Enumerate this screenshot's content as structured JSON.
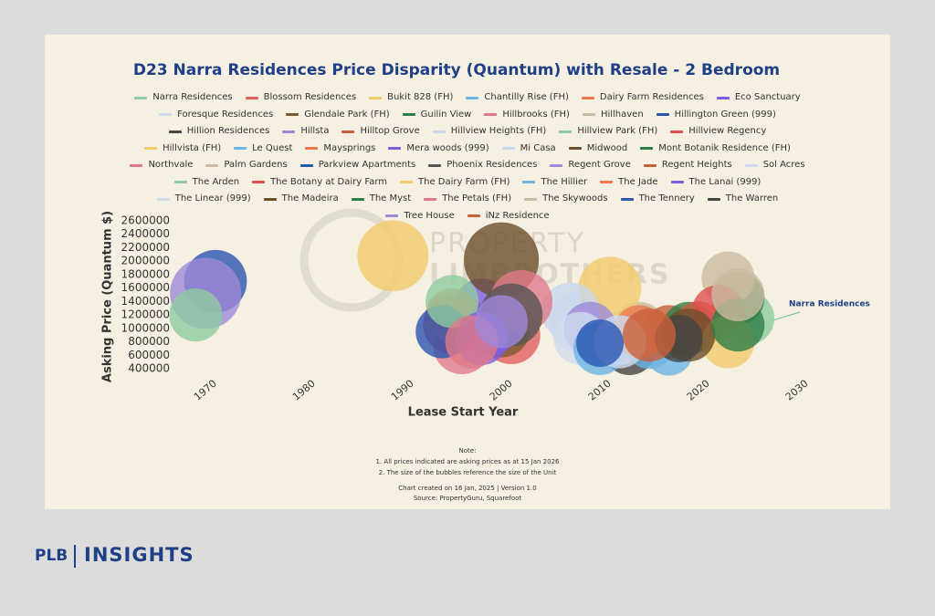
{
  "chart_data": {
    "type": "bubble",
    "title": "D23 Narra Residences Price Disparity (Quantum) with Resale - 2 Bedroom",
    "x_label": "Lease Start Year",
    "y_label": "Asking Price (Quantum $)",
    "xlim": [
      1966,
      2030
    ],
    "xticks": [
      1970,
      1980,
      1990,
      2000,
      2010,
      2020,
      2030
    ],
    "ylim": [
      400000,
      2600000
    ],
    "yticks": [
      400000,
      600000,
      800000,
      1000000,
      1200000,
      1400000,
      1600000,
      1800000,
      2000000,
      2200000,
      2400000,
      2600000
    ],
    "grid": false,
    "annotation": "Narra Residences",
    "watermark": [
      "PROPERTY",
      "LIMBROTHERS"
    ],
    "notes": [
      "Note:",
      "1. All prices indicated are asking prices as at 15 Jan 2026",
      "2. The size of the bubbles reference the size of the Unit"
    ],
    "credits": [
      "Chart created on 16 Jan, 2025 | Version 1.0",
      "Source: PropertyGuru, Squarefoot"
    ],
    "series": [
      {
        "name": "Narra Residences",
        "color": "#8fcca0",
        "x": [
          2025
        ],
        "values": [
          1150000
        ],
        "sizes": [
          500
        ]
      },
      {
        "name": "Blossom Residences",
        "color": "#e36060",
        "x": [
          2001
        ],
        "values": [
          900000
        ],
        "sizes": [
          600
        ]
      },
      {
        "name": "Bukit 828 (FH)",
        "color": "#f2cc6b",
        "x": [
          1989
        ],
        "values": [
          2080000
        ],
        "sizes": [
          900
        ]
      },
      {
        "name": "Chantilly Rise (FH)",
        "color": "#6cb4e4",
        "x": [
          2017
        ],
        "values": [
          650000
        ],
        "sizes": [
          400
        ]
      },
      {
        "name": "Dairy Farm Residences",
        "color": "#f07850",
        "x": [
          1996
        ],
        "values": [
          1050000
        ],
        "sizes": [
          600
        ]
      },
      {
        "name": "Eco Sanctuary",
        "color": "#7b5ce0",
        "x": [
          1998
        ],
        "values": [
          1350000
        ],
        "sizes": [
          500
        ]
      },
      {
        "name": "Foresque Residences",
        "color": "#cfdcf0",
        "x": [
          2008
        ],
        "values": [
          1100000
        ],
        "sizes": [
          700
        ]
      },
      {
        "name": "Glendale Park (FH)",
        "color": "#7a5c2e",
        "x": [
          2000
        ],
        "values": [
          1000000
        ],
        "sizes": [
          600
        ]
      },
      {
        "name": "Guilin View",
        "color": "#2e7d47",
        "x": [
          2024
        ],
        "values": [
          1450000
        ],
        "sizes": [
          500
        ]
      },
      {
        "name": "Hillbrooks (FH)",
        "color": "#e07a8a",
        "x": [
          1996
        ],
        "values": [
          750000
        ],
        "sizes": [
          600
        ]
      },
      {
        "name": "Hillhaven",
        "color": "#c9bba0",
        "x": [
          2014
        ],
        "values": [
          1000000
        ],
        "sizes": [
          500
        ]
      },
      {
        "name": "Hillington Green (999)",
        "color": "#2a55b0",
        "x": [
          1971
        ],
        "values": [
          1700000
        ],
        "sizes": [
          700
        ]
      },
      {
        "name": "Hillion Residences",
        "color": "#444444",
        "x": [
          2013
        ],
        "values": [
          700000
        ],
        "sizes": [
          500
        ]
      },
      {
        "name": "Hillsta",
        "color": "#9f88d8",
        "x": [
          1970
        ],
        "values": [
          1520000
        ],
        "sizes": [
          900
        ]
      },
      {
        "name": "Hilltop Grove",
        "color": "#c8603a",
        "x": [
          2017
        ],
        "values": [
          950000
        ],
        "sizes": [
          500
        ]
      },
      {
        "name": "Hillview Heights (FH)",
        "color": "#c9d8ee",
        "x": [
          2012
        ],
        "values": [
          850000
        ],
        "sizes": [
          500
        ]
      },
      {
        "name": "Hillview Park (FH)",
        "color": "#8fcca0",
        "x": [
          1969
        ],
        "values": [
          1200000
        ],
        "sizes": [
          500
        ]
      },
      {
        "name": "Hillview Regency",
        "color": "#e05050",
        "x": [
          1995
        ],
        "values": [
          1050000
        ],
        "sizes": [
          600
        ]
      },
      {
        "name": "Hillvista (FH)",
        "color": "#f2cc6b",
        "x": [
          2011
        ],
        "values": [
          1600000
        ],
        "sizes": [
          700
        ]
      },
      {
        "name": "Le Quest",
        "color": "#6cb4e4",
        "x": [
          2015
        ],
        "values": [
          750000
        ],
        "sizes": [
          400
        ]
      },
      {
        "name": "Maysprings",
        "color": "#f07850",
        "x": [
          1995
        ],
        "values": [
          1200000
        ],
        "sizes": [
          500
        ]
      },
      {
        "name": "Mera woods (999)",
        "color": "#7b5ce0",
        "x": [
          1999
        ],
        "values": [
          1000000
        ],
        "sizes": [
          500
        ]
      },
      {
        "name": "Mi Casa",
        "color": "#c9d8ee",
        "x": [
          2007
        ],
        "values": [
          1250000
        ],
        "sizes": [
          600
        ]
      },
      {
        "name": "Midwood",
        "color": "#6b4e2a",
        "x": [
          2000
        ],
        "values": [
          2020000
        ],
        "sizes": [
          1000
        ]
      },
      {
        "name": "Mont Botanik Residence (FH)",
        "color": "#2e7d47",
        "x": [
          2019
        ],
        "values": [
          1000000
        ],
        "sizes": [
          500
        ]
      },
      {
        "name": "Northvale",
        "color": "#e07a8a",
        "x": [
          2002
        ],
        "values": [
          1400000
        ],
        "sizes": [
          700
        ]
      },
      {
        "name": "Palm Gardens",
        "color": "#c9bba0",
        "x": [
          2023
        ],
        "values": [
          1750000
        ],
        "sizes": [
          500
        ]
      },
      {
        "name": "Parkview Apartments",
        "color": "#2a55b0",
        "x": [
          1994
        ],
        "values": [
          950000
        ],
        "sizes": [
          500
        ]
      },
      {
        "name": "Phoenix Residences",
        "color": "#555555",
        "x": [
          2001
        ],
        "values": [
          1200000
        ],
        "sizes": [
          700
        ]
      },
      {
        "name": "Regent Grove",
        "color": "#9f88d8",
        "x": [
          2009
        ],
        "values": [
          1000000
        ],
        "sizes": [
          500
        ]
      },
      {
        "name": "Regent Heights",
        "color": "#c8603a",
        "x": [
          2020
        ],
        "values": [
          1050000
        ],
        "sizes": [
          400
        ]
      },
      {
        "name": "Sol Acres",
        "color": "#d0dcee",
        "x": [
          2008
        ],
        "values": [
          850000
        ],
        "sizes": [
          500
        ]
      },
      {
        "name": "The Arden",
        "color": "#8fcca0",
        "x": [
          1995
        ],
        "values": [
          1400000
        ],
        "sizes": [
          500
        ]
      },
      {
        "name": "The Botany at Dairy Farm",
        "color": "#e05050",
        "x": [
          2022
        ],
        "values": [
          1250000
        ],
        "sizes": [
          500
        ]
      },
      {
        "name": "The Dairy Farm (FH)",
        "color": "#f2cc6b",
        "x": [
          2023
        ],
        "values": [
          800000
        ],
        "sizes": [
          500
        ]
      },
      {
        "name": "The Hillier",
        "color": "#6cb4e4",
        "x": [
          2010
        ],
        "values": [
          700000
        ],
        "sizes": [
          500
        ]
      },
      {
        "name": "The Jade",
        "color": "#f07850",
        "x": [
          2014
        ],
        "values": [
          950000
        ],
        "sizes": [
          500
        ]
      },
      {
        "name": "The Lanai (999)",
        "color": "#7b5ce0",
        "x": [
          1998
        ],
        "values": [
          850000
        ],
        "sizes": [
          500
        ]
      },
      {
        "name": "The Linear (999)",
        "color": "#cfdcf0",
        "x": [
          2012
        ],
        "values": [
          800000
        ],
        "sizes": [
          500
        ]
      },
      {
        "name": "The Madeira",
        "color": "#6b4e2a",
        "x": [
          2019
        ],
        "values": [
          900000
        ],
        "sizes": [
          500
        ]
      },
      {
        "name": "The Myst",
        "color": "#2e7d47",
        "x": [
          2024
        ],
        "values": [
          1050000
        ],
        "sizes": [
          500
        ]
      },
      {
        "name": "The Petals (FH)",
        "color": "#e07a8a",
        "x": [
          1997
        ],
        "values": [
          800000
        ],
        "sizes": [
          500
        ]
      },
      {
        "name": "The Skywoods",
        "color": "#c9bba0",
        "x": [
          2024
        ],
        "values": [
          1500000
        ],
        "sizes": [
          500
        ]
      },
      {
        "name": "The Tennery",
        "color": "#2a55b0",
        "x": [
          2010
        ],
        "values": [
          780000
        ],
        "sizes": [
          400
        ]
      },
      {
        "name": "The Warren",
        "color": "#444444",
        "x": [
          2018
        ],
        "values": [
          850000
        ],
        "sizes": [
          400
        ]
      },
      {
        "name": "Tree House",
        "color": "#9f88d8",
        "x": [
          2000
        ],
        "values": [
          1100000
        ],
        "sizes": [
          500
        ]
      },
      {
        "name": "iNz Residence",
        "color": "#c8603a",
        "x": [
          2015
        ],
        "values": [
          900000
        ],
        "sizes": [
          500
        ]
      }
    ]
  },
  "footer": {
    "brand": "PLB",
    "product": "INSIGHTS"
  }
}
